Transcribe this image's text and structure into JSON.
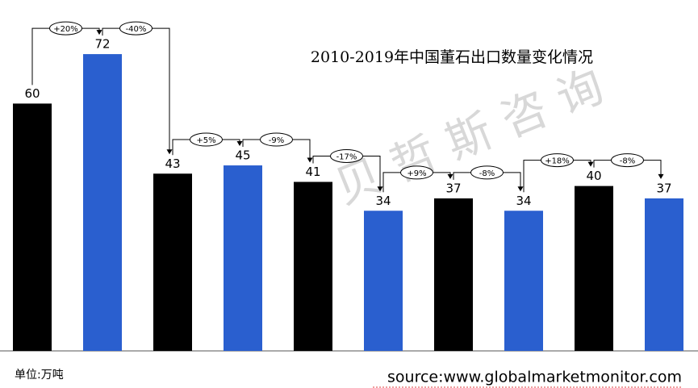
{
  "chart_data": {
    "type": "bar",
    "title": "2010-2019年中国董石出口数量变化情况",
    "unit_note": "单位:万吨",
    "source": "source:www.globalmarketmonitor.com",
    "watermark": "贝哲斯咨询",
    "categories": [
      null,
      null,
      null,
      null,
      null,
      null,
      null,
      null,
      null,
      null
    ],
    "values": [
      60,
      72,
      43,
      45,
      41,
      34,
      37,
      34,
      40,
      37
    ],
    "colors": [
      "#000000",
      "#2a5fcf",
      "#000000",
      "#2a5fcf",
      "#000000",
      "#2a5fcf",
      "#000000",
      "#2a5fcf",
      "#000000",
      "#2a5fcf"
    ],
    "changes": [
      "+20%",
      "-40%",
      "+5%",
      "-9%",
      "-17%",
      "+9%",
      "-8%",
      "+18%",
      "-8%"
    ]
  }
}
